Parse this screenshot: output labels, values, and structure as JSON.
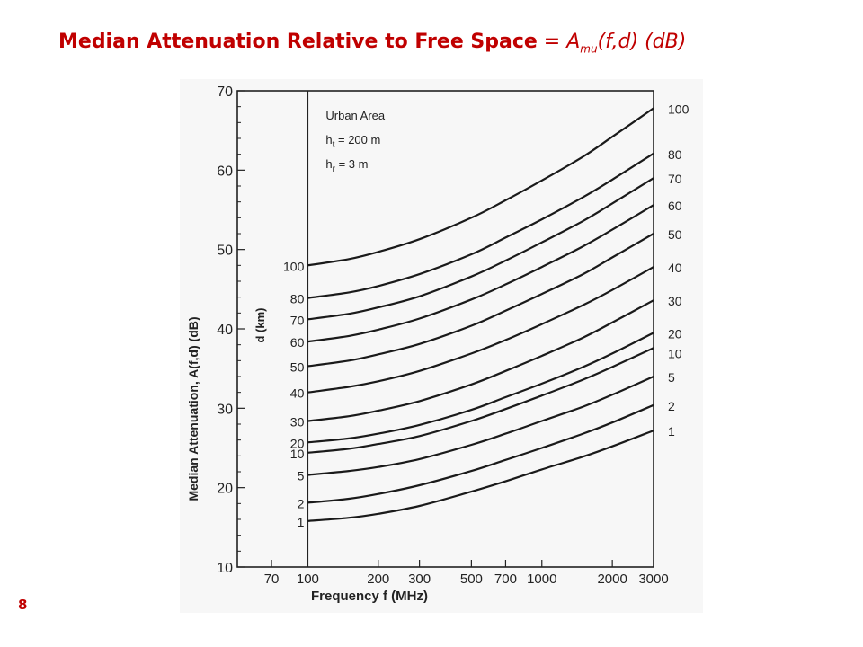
{
  "slide": {
    "title_bold": "Median Attenuation Relative to Free Space",
    "title_eq": " = ",
    "title_fn": "A",
    "title_sub": "mu",
    "title_args": "(f,d) (dB)",
    "page_number": "8"
  },
  "chart_data": {
    "type": "line",
    "title": "",
    "xlabel": "Frequency  f  (MHz)",
    "ylabel": "Median Attenuation,  A(f,d)  (dB)",
    "xscale": "log",
    "xlim": [
      50,
      3000
    ],
    "ylim": [
      10,
      70
    ],
    "x_ticks": [
      "70",
      "100",
      "200",
      "300",
      "500",
      "700",
      "1000",
      "2000",
      "3000"
    ],
    "y_ticks": [
      "10",
      "20",
      "30",
      "40",
      "50",
      "60",
      "70"
    ],
    "curve_axis_label": "d (km)",
    "annotations": [
      "Urban Area",
      "h_t = 200 m",
      "h_r = 3 m"
    ],
    "x": [
      100,
      150,
      200,
      300,
      500,
      700,
      1000,
      1500,
      2000,
      3000
    ],
    "series": [
      {
        "name": "1",
        "values": [
          15.8,
          16.2,
          16.7,
          17.7,
          19.5,
          20.8,
          22.3,
          23.9,
          25.2,
          27.2
        ]
      },
      {
        "name": "2",
        "values": [
          18.1,
          18.6,
          19.2,
          20.3,
          22.1,
          23.5,
          25.0,
          26.8,
          28.2,
          30.4
        ]
      },
      {
        "name": "5",
        "values": [
          21.6,
          22.1,
          22.6,
          23.6,
          25.4,
          26.8,
          28.4,
          30.2,
          31.7,
          34.0
        ]
      },
      {
        "name": "10",
        "values": [
          24.4,
          24.9,
          25.5,
          26.5,
          28.4,
          29.9,
          31.6,
          33.6,
          35.2,
          37.6
        ]
      },
      {
        "name": "20",
        "values": [
          25.7,
          26.2,
          26.8,
          27.9,
          29.8,
          31.4,
          33.1,
          35.2,
          36.9,
          39.5
        ]
      },
      {
        "name": "30",
        "values": [
          28.4,
          29.0,
          29.7,
          30.9,
          33.0,
          34.7,
          36.6,
          38.9,
          40.8,
          43.6
        ]
      },
      {
        "name": "40",
        "values": [
          32.0,
          32.7,
          33.4,
          34.7,
          36.9,
          38.6,
          40.6,
          43.0,
          44.9,
          47.8
        ]
      },
      {
        "name": "50",
        "values": [
          35.3,
          36.0,
          36.8,
          38.1,
          40.4,
          42.3,
          44.4,
          46.9,
          49.0,
          52.0
        ]
      },
      {
        "name": "60",
        "values": [
          38.4,
          39.1,
          39.9,
          41.3,
          43.7,
          45.6,
          47.8,
          50.4,
          52.5,
          55.6
        ]
      },
      {
        "name": "70",
        "values": [
          41.2,
          41.9,
          42.7,
          44.1,
          46.6,
          48.6,
          50.9,
          53.6,
          55.8,
          59.0
        ]
      },
      {
        "name": "80",
        "values": [
          43.9,
          44.6,
          45.4,
          46.9,
          49.4,
          51.5,
          53.8,
          56.6,
          58.8,
          62.1
        ]
      },
      {
        "name": "100",
        "values": [
          48.0,
          48.8,
          49.7,
          51.3,
          54.0,
          56.2,
          58.7,
          61.7,
          64.2,
          67.8
        ]
      }
    ],
    "left_curve_labels": [
      "100",
      "80",
      "70",
      "60",
      "50",
      "40",
      "30",
      "20",
      "10",
      "5",
      "2",
      "1"
    ],
    "right_curve_labels": [
      "100",
      "80",
      "70",
      "60",
      "50",
      "40",
      "30",
      "20",
      "10",
      "5",
      "2",
      "1"
    ],
    "grid": false,
    "legend": "none"
  }
}
